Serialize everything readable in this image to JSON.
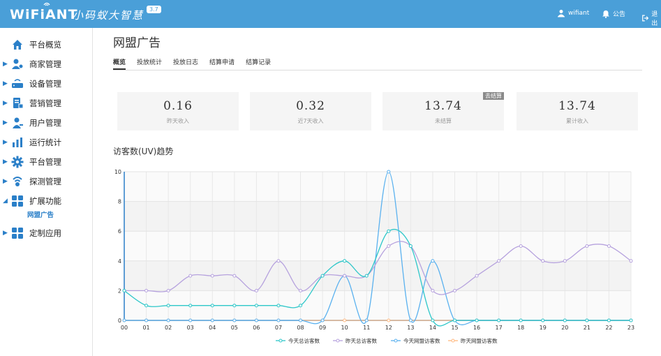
{
  "app": {
    "brand": "WiFiANT",
    "brand_cn": "小码蚁大智慧",
    "version": "3.7"
  },
  "header": {
    "user": "wifiant",
    "notice": "公告",
    "logout": "退出"
  },
  "sidebar": {
    "items": [
      {
        "label": "平台概览",
        "icon": "home-icon"
      },
      {
        "label": "商家管理",
        "icon": "merchant-icon"
      },
      {
        "label": "设备管理",
        "icon": "router-icon"
      },
      {
        "label": "营销管理",
        "icon": "marketing-icon"
      },
      {
        "label": "用户管理",
        "icon": "user-icon"
      },
      {
        "label": "运行统计",
        "icon": "bar-chart-icon"
      },
      {
        "label": "平台管理",
        "icon": "gear-icon"
      },
      {
        "label": "探测管理",
        "icon": "probe-icon"
      },
      {
        "label": "扩展功能",
        "icon": "apps-icon"
      },
      {
        "label": "定制应用",
        "icon": "apps-icon"
      }
    ],
    "sub_active": "网盟广告"
  },
  "main": {
    "title": "网盟广告",
    "tabs": [
      "概览",
      "投放统计",
      "投放日志",
      "结算申请",
      "结算记录"
    ],
    "active_tab": "概览",
    "cards": [
      {
        "value": "0.16",
        "label": "昨天收入"
      },
      {
        "value": "0.32",
        "label": "近7天收入"
      },
      {
        "value": "13.74",
        "label": "未结算",
        "badge": "去结算"
      },
      {
        "value": "13.74",
        "label": "累计收入"
      }
    ],
    "chart_title": "访客数(UV)趋势"
  },
  "chart_data": {
    "type": "line",
    "x": [
      "00",
      "01",
      "02",
      "03",
      "04",
      "05",
      "06",
      "07",
      "08",
      "09",
      "10",
      "11",
      "12",
      "13",
      "14",
      "15",
      "16",
      "17",
      "18",
      "19",
      "20",
      "21",
      "22",
      "23"
    ],
    "ylim": [
      0,
      10
    ],
    "yticks": [
      0,
      2,
      4,
      6,
      8,
      10
    ],
    "grid": true,
    "legend_position": "bottom",
    "series": [
      {
        "name": "今天总访客数",
        "color": "#2ec7c9",
        "values": [
          2,
          1,
          1,
          1,
          1,
          1,
          1,
          1,
          1,
          3,
          4,
          3,
          6,
          5,
          0,
          0,
          0,
          0,
          0,
          0,
          0,
          0,
          0,
          0
        ]
      },
      {
        "name": "昨天总访客数",
        "color": "#b6a2de",
        "values": [
          2,
          2,
          2,
          3,
          3,
          3,
          2,
          4,
          2,
          3,
          3,
          3,
          5,
          5,
          2,
          2,
          3,
          4,
          5,
          4,
          4,
          5,
          5,
          4
        ]
      },
      {
        "name": "今天网盟访客数",
        "color": "#5ab1ef",
        "values": [
          0,
          0,
          0,
          0,
          0,
          0,
          0,
          0,
          0,
          0,
          3,
          0,
          10,
          0,
          4,
          0,
          0,
          0,
          0,
          0,
          0,
          0,
          0,
          0
        ]
      },
      {
        "name": "昨天网盟访客数",
        "color": "#ffb980",
        "values": [
          0,
          0,
          0,
          0,
          0,
          0,
          0,
          0,
          0,
          0,
          0,
          0,
          0,
          0,
          0,
          0,
          0,
          0,
          0,
          0,
          0,
          0,
          0,
          0
        ]
      }
    ]
  }
}
